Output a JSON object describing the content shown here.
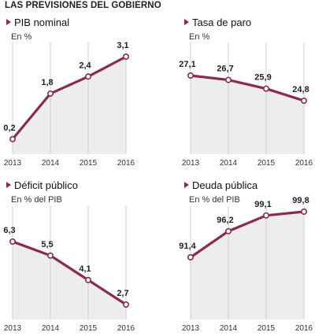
{
  "title": "LAS PREVISIONES DEL GOBIERNO",
  "colors": {
    "line": "#8a2a4e",
    "area": "#ededed",
    "grid": "#cfcfcf",
    "marker_fill": "#ffffff",
    "bullet": "#8a2a4e"
  },
  "chart_data": [
    {
      "type": "line",
      "title": "PIB nominal",
      "subtitle": "En %",
      "categories": [
        "2013",
        "2014",
        "2015",
        "2016"
      ],
      "values": [
        0.2,
        1.8,
        2.4,
        3.1
      ],
      "labels": [
        "0,2",
        "1,8",
        "2,4",
        "3,1"
      ]
    },
    {
      "type": "line",
      "title": "Tasa de paro",
      "subtitle": "En %",
      "categories": [
        "2013",
        "2014",
        "2015",
        "2016"
      ],
      "values": [
        27.1,
        26.7,
        25.9,
        24.8
      ],
      "labels": [
        "27,1",
        "26,7",
        "25,9",
        "24,8"
      ]
    },
    {
      "type": "line",
      "title": "Déficit público",
      "subtitle": "En % del PIB",
      "categories": [
        "2013",
        "2014",
        "2015",
        "2016"
      ],
      "values": [
        6.3,
        5.5,
        4.1,
        2.7
      ],
      "labels": [
        "6,3",
        "5,5",
        "4,1",
        "2,7"
      ]
    },
    {
      "type": "line",
      "title": "Deuda pública",
      "subtitle": "En % del PIB",
      "categories": [
        "2013",
        "2014",
        "2015",
        "2016"
      ],
      "values": [
        91.4,
        96.2,
        99.1,
        99.8
      ],
      "labels": [
        "91,4",
        "96,2",
        "99,1",
        "99,8"
      ]
    }
  ]
}
